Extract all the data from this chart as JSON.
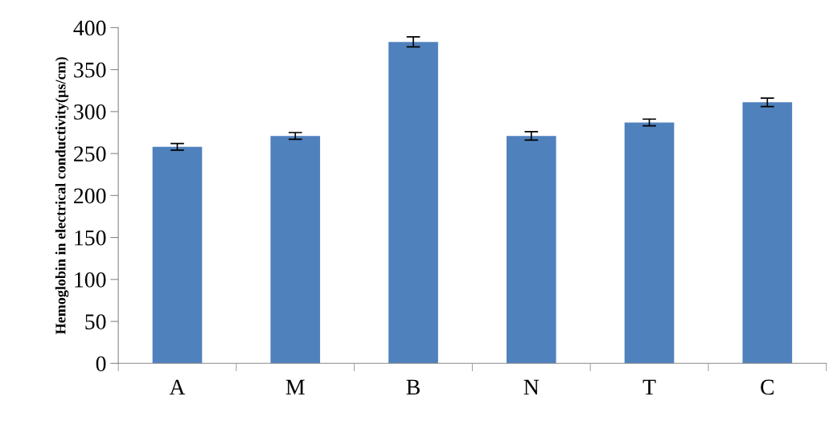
{
  "chart_data": {
    "type": "bar",
    "ylabel": "Hemoglobin in electrical conductivity(µs/cm)",
    "categories": [
      "A",
      "M",
      "B",
      "N",
      "T",
      "C"
    ],
    "values": [
      258,
      271,
      383,
      271,
      287,
      311
    ],
    "errors": [
      4,
      4,
      6,
      5,
      4,
      5
    ],
    "color": "#4f81bd",
    "ylim": [
      0,
      400
    ],
    "yticks": [
      0,
      50,
      100,
      150,
      200,
      250,
      300,
      350,
      400
    ],
    "grid": false
  }
}
